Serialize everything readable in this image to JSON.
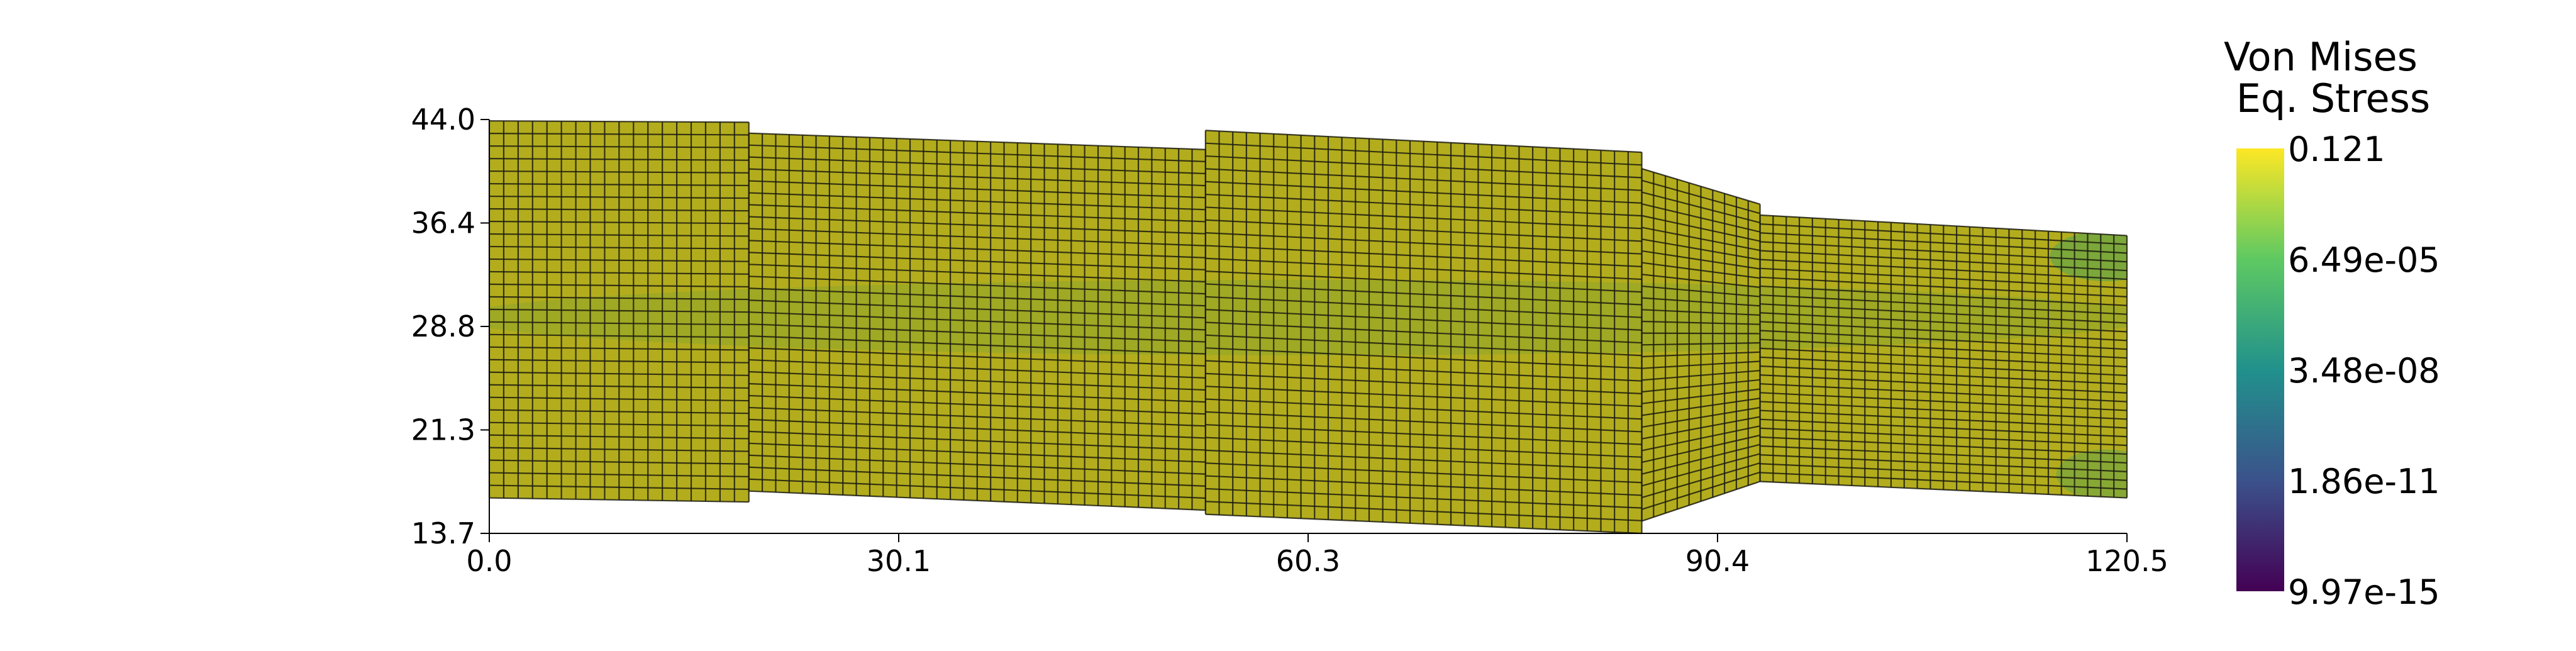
{
  "chart_data": {
    "type": "heatmap",
    "title": "",
    "xlabel": "",
    "ylabel": "",
    "x_ticks": [
      "0.0",
      "30.1",
      "60.3",
      "90.4",
      "120.5"
    ],
    "y_ticks": [
      "44.0",
      "36.4",
      "28.8",
      "21.3",
      "13.7"
    ],
    "xlim": [
      0.0,
      120.5
    ],
    "ylim": [
      13.7,
      44.0
    ],
    "colorbar": {
      "title_lines": [
        "Von Mises",
        "Eq. Stress"
      ],
      "labels": [
        "0.121",
        "6.49e-05",
        "3.48e-08",
        "1.86e-11",
        "9.97e-15"
      ],
      "scale": "log",
      "colormap": "viridis",
      "colormap_stops": [
        "#440154",
        "#3b528b",
        "#21918c",
        "#5ec962",
        "#fde725"
      ]
    },
    "mesh": {
      "segments": [
        {
          "x_start": 0.0,
          "x_end": 19.1,
          "bottom_start": 16.3,
          "bottom_end": 16.0,
          "top_start": 43.9,
          "top_end": 43.8,
          "columns": 18,
          "rows": 30
        },
        {
          "x_start": 19.1,
          "x_end": 52.7,
          "bottom_start": 16.8,
          "bottom_end": 15.4,
          "top_start": 43.0,
          "top_end": 41.8,
          "columns": 34,
          "rows": 30
        },
        {
          "x_start": 52.7,
          "x_end": 84.8,
          "bottom_start": 15.1,
          "bottom_end": 13.7,
          "top_start": 43.2,
          "top_end": 41.6,
          "columns": 32,
          "rows": 30
        },
        {
          "x_start": 84.8,
          "x_end": 93.5,
          "bottom_start": 14.6,
          "bottom_end": 17.5,
          "top_start": 40.4,
          "top_end": 37.8,
          "columns": 10,
          "rows": 30
        },
        {
          "x_start": 93.5,
          "x_end": 120.5,
          "bottom_start": 17.5,
          "bottom_end": 16.3,
          "top_start": 37.0,
          "top_end": 35.5,
          "columns": 28,
          "rows": 30
        }
      ],
      "fill_color": "#b3ad1d",
      "grid_line_color": "#1c1c10"
    }
  }
}
